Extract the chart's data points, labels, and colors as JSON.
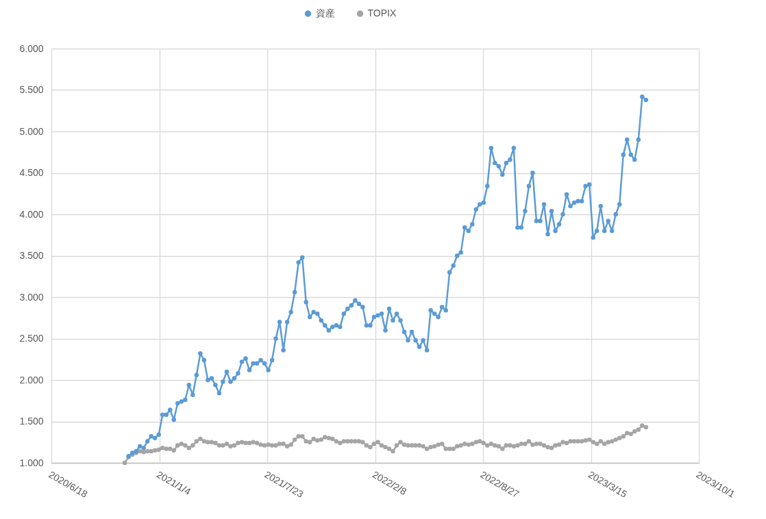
{
  "chart_data": {
    "type": "line",
    "x": [
      "2020-11-01",
      "2020-11-08",
      "2020-11-15",
      "2020-11-22",
      "2020-11-29",
      "2020-12-06",
      "2020-12-13",
      "2020-12-20",
      "2020-12-27",
      "2021-01-03",
      "2021-01-10",
      "2021-01-17",
      "2021-01-24",
      "2021-01-31",
      "2021-02-07",
      "2021-02-14",
      "2021-02-21",
      "2021-02-28",
      "2021-03-07",
      "2021-03-14",
      "2021-03-21",
      "2021-03-28",
      "2021-04-04",
      "2021-04-11",
      "2021-04-18",
      "2021-04-25",
      "2021-05-02",
      "2021-05-09",
      "2021-05-16",
      "2021-05-23",
      "2021-05-30",
      "2021-06-06",
      "2021-06-13",
      "2021-06-20",
      "2021-06-27",
      "2021-07-04",
      "2021-07-11",
      "2021-07-18",
      "2021-07-25",
      "2021-08-01",
      "2021-08-08",
      "2021-08-15",
      "2021-08-22",
      "2021-08-29",
      "2021-09-05",
      "2021-09-12",
      "2021-09-19",
      "2021-09-26",
      "2021-10-03",
      "2021-10-10",
      "2021-10-17",
      "2021-10-24",
      "2021-10-31",
      "2021-11-07",
      "2021-11-14",
      "2021-11-21",
      "2021-11-28",
      "2021-12-05",
      "2021-12-12",
      "2021-12-19",
      "2021-12-26",
      "2022-01-02",
      "2022-01-09",
      "2022-01-16",
      "2022-01-23",
      "2022-01-30",
      "2022-02-06",
      "2022-02-13",
      "2022-02-20",
      "2022-02-27",
      "2022-03-06",
      "2022-03-13",
      "2022-03-20",
      "2022-03-27",
      "2022-04-03",
      "2022-04-10",
      "2022-04-17",
      "2022-04-24",
      "2022-05-01",
      "2022-05-08",
      "2022-05-15",
      "2022-05-22",
      "2022-05-29",
      "2022-06-05",
      "2022-06-12",
      "2022-06-19",
      "2022-06-26",
      "2022-07-03",
      "2022-07-10",
      "2022-07-17",
      "2022-07-24",
      "2022-07-31",
      "2022-08-07",
      "2022-08-14",
      "2022-08-21",
      "2022-08-28",
      "2022-09-04",
      "2022-09-11",
      "2022-09-18",
      "2022-09-25",
      "2022-10-02",
      "2022-10-09",
      "2022-10-16",
      "2022-10-23",
      "2022-10-30",
      "2022-11-06",
      "2022-11-13",
      "2022-11-20",
      "2022-11-27",
      "2022-12-04",
      "2022-12-11",
      "2022-12-18",
      "2022-12-25",
      "2023-01-01",
      "2023-01-08",
      "2023-01-15",
      "2023-01-22",
      "2023-01-29",
      "2023-02-05",
      "2023-02-12",
      "2023-02-19",
      "2023-02-26",
      "2023-03-05",
      "2023-03-12",
      "2023-03-19",
      "2023-03-26",
      "2023-04-02",
      "2023-04-09",
      "2023-04-16",
      "2023-04-23",
      "2023-04-30",
      "2023-05-07",
      "2023-05-14",
      "2023-05-21",
      "2023-05-28",
      "2023-06-04",
      "2023-06-11",
      "2023-06-18",
      "2023-06-25"
    ],
    "series": [
      {
        "name": "資産",
        "color": "#5b9bd5",
        "values": [
          null,
          1.08,
          1.12,
          1.14,
          1.2,
          1.18,
          1.26,
          1.32,
          1.3,
          1.34,
          1.58,
          1.58,
          1.64,
          1.52,
          1.72,
          1.74,
          1.76,
          1.94,
          1.82,
          2.06,
          2.32,
          2.24,
          2.0,
          2.02,
          1.94,
          1.84,
          1.98,
          2.1,
          1.98,
          2.02,
          2.08,
          2.22,
          2.26,
          2.12,
          2.2,
          2.2,
          2.24,
          2.2,
          2.12,
          2.24,
          2.5,
          2.7,
          2.36,
          2.7,
          2.82,
          3.06,
          3.42,
          3.48,
          2.94,
          2.76,
          2.82,
          2.8,
          2.72,
          2.66,
          2.6,
          2.64,
          2.66,
          2.64,
          2.8,
          2.86,
          2.9,
          2.96,
          2.92,
          2.88,
          2.66,
          2.66,
          2.76,
          2.78,
          2.8,
          2.6,
          2.86,
          2.72,
          2.8,
          2.72,
          2.58,
          2.48,
          2.58,
          2.48,
          2.4,
          2.48,
          2.36,
          2.84,
          2.8,
          2.76,
          2.88,
          2.84,
          3.3,
          3.38,
          3.5,
          3.54,
          3.84,
          3.8,
          3.88,
          4.06,
          4.12,
          4.14,
          4.34,
          4.8,
          4.62,
          4.58,
          4.48,
          4.62,
          4.66,
          4.8,
          3.84,
          3.84,
          4.04,
          4.34,
          4.5,
          3.92,
          3.92,
          4.12,
          3.76,
          4.04,
          3.8,
          3.88,
          4.0,
          4.24,
          4.1,
          4.14,
          4.16,
          4.16,
          4.34,
          4.36,
          3.72,
          3.8,
          4.1,
          3.8,
          3.92,
          3.8,
          4.0,
          4.12,
          4.72,
          4.9,
          4.72,
          4.66,
          4.9,
          5.42,
          5.38
        ]
      },
      {
        "name": "TOPIX",
        "color": "#a5a5a5",
        "values": [
          1.0,
          1.07,
          1.1,
          1.12,
          1.14,
          1.13,
          1.14,
          1.14,
          1.15,
          1.16,
          1.18,
          1.17,
          1.17,
          1.15,
          1.21,
          1.23,
          1.21,
          1.18,
          1.21,
          1.26,
          1.29,
          1.26,
          1.25,
          1.25,
          1.24,
          1.21,
          1.21,
          1.23,
          1.2,
          1.21,
          1.24,
          1.25,
          1.24,
          1.24,
          1.25,
          1.24,
          1.22,
          1.21,
          1.22,
          1.21,
          1.21,
          1.23,
          1.23,
          1.2,
          1.22,
          1.28,
          1.32,
          1.32,
          1.26,
          1.25,
          1.29,
          1.27,
          1.28,
          1.31,
          1.3,
          1.29,
          1.26,
          1.24,
          1.26,
          1.26,
          1.26,
          1.26,
          1.26,
          1.25,
          1.21,
          1.19,
          1.23,
          1.25,
          1.21,
          1.19,
          1.17,
          1.14,
          1.21,
          1.25,
          1.22,
          1.21,
          1.21,
          1.21,
          1.21,
          1.2,
          1.17,
          1.19,
          1.2,
          1.22,
          1.23,
          1.17,
          1.17,
          1.17,
          1.2,
          1.21,
          1.23,
          1.22,
          1.23,
          1.25,
          1.26,
          1.24,
          1.21,
          1.23,
          1.21,
          1.2,
          1.17,
          1.21,
          1.21,
          1.2,
          1.21,
          1.23,
          1.23,
          1.26,
          1.22,
          1.23,
          1.23,
          1.21,
          1.19,
          1.18,
          1.21,
          1.22,
          1.25,
          1.24,
          1.26,
          1.26,
          1.26,
          1.26,
          1.27,
          1.28,
          1.25,
          1.23,
          1.26,
          1.23,
          1.25,
          1.26,
          1.28,
          1.3,
          1.32,
          1.36,
          1.35,
          1.38,
          1.4,
          1.45,
          1.43
        ]
      }
    ],
    "xlim": [
      "2020-06-18",
      "2023-10-01"
    ],
    "xticks": [
      {
        "value": "2020-06-18",
        "label": "2020/6/18"
      },
      {
        "value": "2021-01-04",
        "label": "2021/1/4"
      },
      {
        "value": "2021-07-23",
        "label": "2021/7/23"
      },
      {
        "value": "2022-02-08",
        "label": "2022/2/8"
      },
      {
        "value": "2022-08-27",
        "label": "2022/8/27"
      },
      {
        "value": "2023-03-15",
        "label": "2023/3/15"
      },
      {
        "value": "2023-10-01",
        "label": "2023/10/1"
      }
    ],
    "ylim": [
      1,
      6
    ],
    "yticks": [
      {
        "value": 1,
        "label": "1.000"
      },
      {
        "value": 1.5,
        "label": "1.500"
      },
      {
        "value": 2,
        "label": "2.000"
      },
      {
        "value": 2.5,
        "label": "2.500"
      },
      {
        "value": 3,
        "label": "3.000"
      },
      {
        "value": 3.5,
        "label": "3.500"
      },
      {
        "value": 4,
        "label": "4.000"
      },
      {
        "value": 4.5,
        "label": "4.500"
      },
      {
        "value": 5,
        "label": "5.000"
      },
      {
        "value": 5.5,
        "label": "5.500"
      },
      {
        "value": 6,
        "label": "6.000"
      }
    ],
    "grid": true,
    "legend": "top",
    "marker": "circle",
    "line_style": "solid"
  }
}
